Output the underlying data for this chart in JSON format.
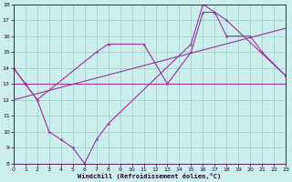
{
  "xlabel": "Windchill (Refroidissement éolien,°C)",
  "xlim": [
    0,
    23
  ],
  "ylim": [
    8,
    18
  ],
  "yticks": [
    8,
    9,
    10,
    11,
    12,
    13,
    14,
    15,
    16,
    17,
    18
  ],
  "xticks": [
    0,
    1,
    2,
    3,
    4,
    5,
    6,
    7,
    8,
    9,
    10,
    11,
    12,
    13,
    14,
    15,
    16,
    17,
    18,
    19,
    20,
    21,
    22,
    23
  ],
  "line_color": "#993399",
  "bg_color": "#cceeed",
  "grid_color": "#99ccca",
  "line1_x": [
    0,
    1,
    2,
    7,
    8,
    11,
    13,
    15,
    16,
    17,
    18,
    20,
    21,
    23
  ],
  "line1_y": [
    14,
    13,
    12,
    15,
    15.5,
    15.5,
    13,
    15,
    17.5,
    17.5,
    16,
    16,
    15,
    13.5
  ],
  "line2_x": [
    0,
    1,
    2,
    3,
    4,
    5,
    6,
    7,
    8,
    15,
    16,
    17,
    18,
    23
  ],
  "line2_y": [
    14,
    13,
    12,
    10,
    9.5,
    9,
    8,
    9.5,
    10.5,
    15.5,
    18,
    17.5,
    17,
    13.5
  ],
  "line3_x": [
    0,
    23
  ],
  "line3_y": [
    13.0,
    13.0
  ],
  "line4_x": [
    0,
    23
  ],
  "line4_y": [
    12.0,
    16.5
  ]
}
